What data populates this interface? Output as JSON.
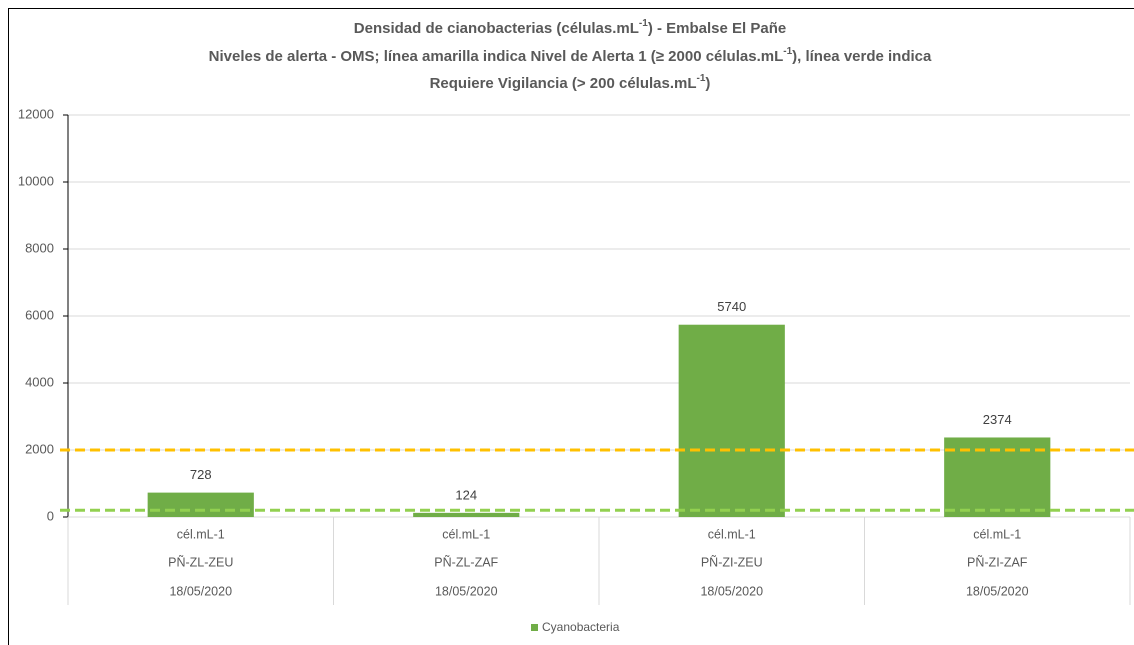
{
  "chart_data": {
    "type": "bar",
    "title": [
      [
        "Densidad de cianobacterias (células.mL",
        "-1",
        ") - Embalse El Pañe"
      ],
      [
        "Niveles de alerta - OMS; línea amarilla indica Nivel de Alerta 1 (≥ 2000 células.mL",
        "-1",
        "), línea verde indica"
      ],
      [
        "Requiere Vigilancia (> 200 células.mL",
        "-1",
        ")"
      ]
    ],
    "categories": [
      [
        "cél.mL-1",
        "PÑ-ZL-ZEU",
        "18/05/2020"
      ],
      [
        "cél.mL-1",
        "PÑ-ZL-ZAF",
        "18/05/2020"
      ],
      [
        "cél.mL-1",
        "PÑ-ZI-ZEU",
        "18/05/2020"
      ],
      [
        "cél.mL-1",
        "PÑ-ZI-ZAF",
        "18/05/2020"
      ]
    ],
    "series": [
      {
        "name": "Cyanobacteria",
        "color": "#70ad47",
        "values": [
          728,
          124,
          5740,
          2374
        ]
      }
    ],
    "reference_lines": [
      {
        "value": 2000,
        "color": "#ffc000"
      },
      {
        "value": 200,
        "color": "#92d050"
      }
    ],
    "ylim": [
      0,
      12000
    ],
    "yticks": [
      0,
      2000,
      4000,
      6000,
      8000,
      10000,
      12000
    ],
    "grid": true,
    "legend": "bottom"
  }
}
